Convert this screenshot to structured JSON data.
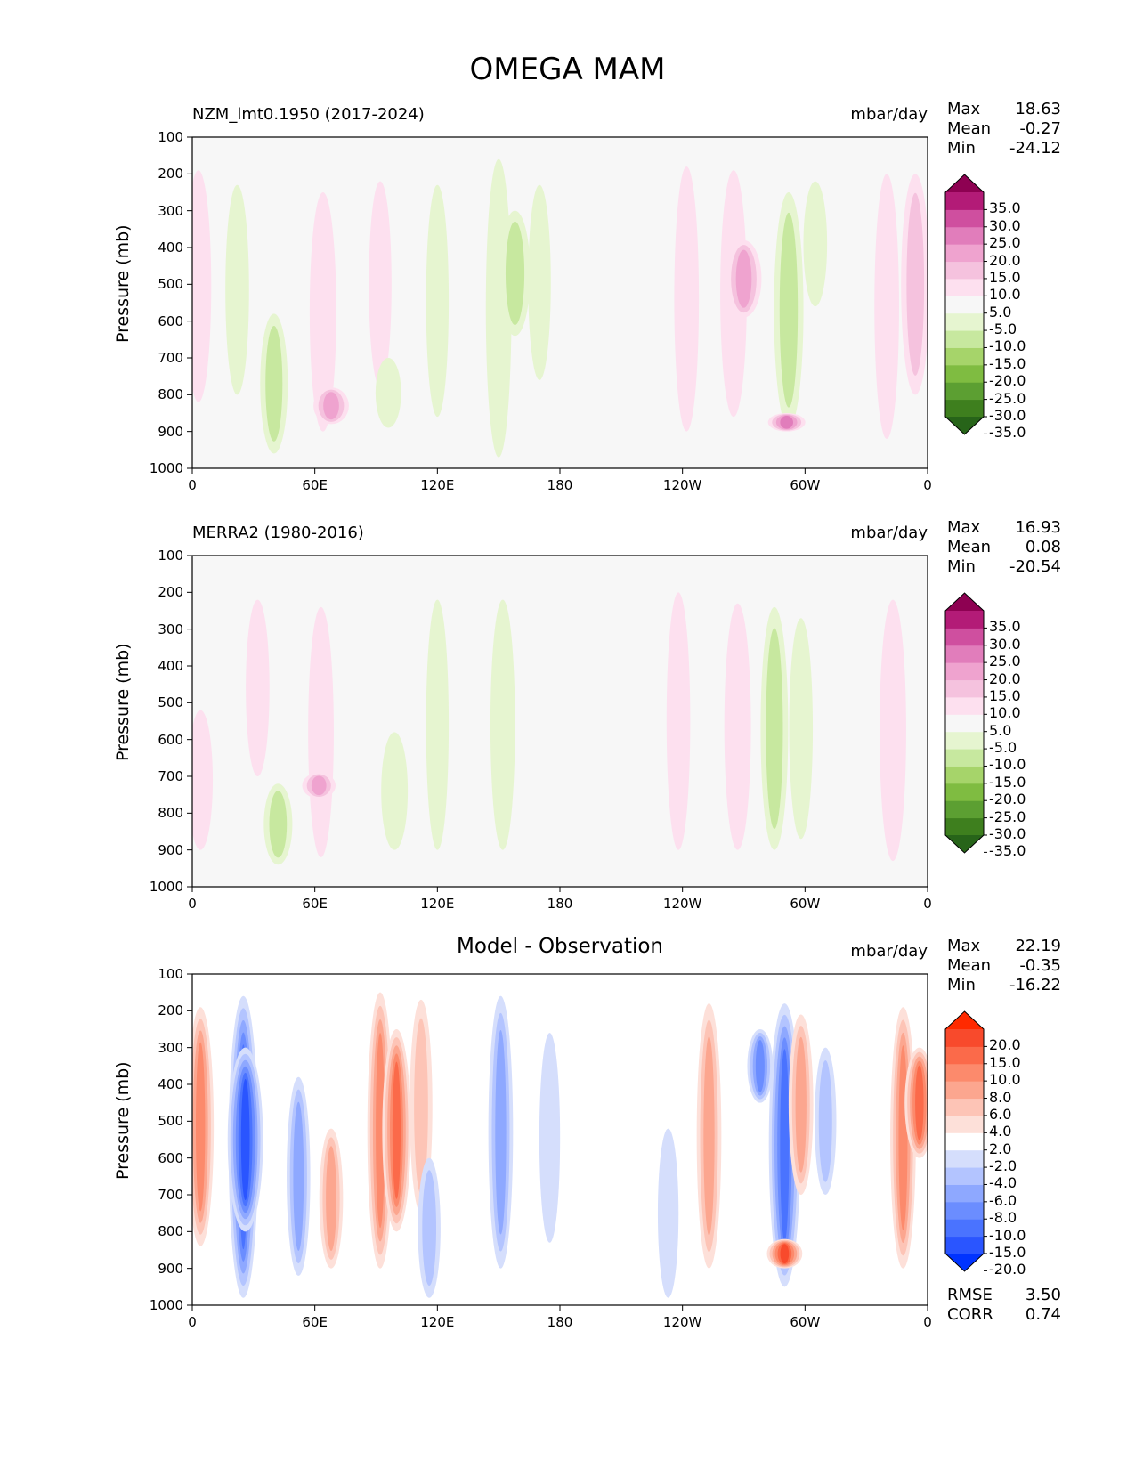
{
  "figure": {
    "title": "OMEGA MAM",
    "colors": {
      "diverging_pink_green": [
        "#276419",
        "#3e7f1e",
        "#5c9f32",
        "#7fbc41",
        "#a6d46a",
        "#c7e89f",
        "#e6f5d0",
        "#f7f7f7",
        "#fde0ef",
        "#f5c2de",
        "#efa3cf",
        "#e17dbb",
        "#cf4f9f",
        "#b31b77",
        "#8e0152"
      ],
      "diverging_blue_red": [
        "#0033ff",
        "#2a55ff",
        "#4a73ff",
        "#6b8dff",
        "#8ea8ff",
        "#b3c4ff",
        "#d5defc",
        "#ffffff",
        "#fde0d9",
        "#fdc4b6",
        "#fca68f",
        "#fc8a6c",
        "#fb6a4a",
        "#f84a2c",
        "#ff2a00"
      ]
    }
  },
  "chart_data": [
    {
      "type": "heatmap",
      "title": "NZM_lmt0.1950 (2017-2024)",
      "units": "mbar/day",
      "ylabel": "Pressure (mb)",
      "yticks": [
        "100",
        "200",
        "300",
        "400",
        "500",
        "600",
        "700",
        "800",
        "900",
        "1000"
      ],
      "xticks": [
        "0",
        "60E",
        "120E",
        "180",
        "120W",
        "60W",
        "0"
      ],
      "ylim": [
        1000,
        100
      ],
      "xlim": [
        0,
        360
      ],
      "stats": {
        "max_label": "Max",
        "max": "18.63",
        "mean_label": "Mean",
        "mean": "-0.27",
        "min_label": "Min",
        "min": "-24.12"
      },
      "colorbar_levels": [
        "35.0",
        "30.0",
        "25.0",
        "20.0",
        "15.0",
        "10.0",
        "5.0",
        "-5.0",
        "-10.0",
        "-15.0",
        "-20.0",
        "-25.0",
        "-30.0",
        "-35.0"
      ],
      "features": [
        {
          "lon": 3,
          "p_top": 190,
          "p_bot": 820,
          "value": 8
        },
        {
          "lon": 22,
          "p_top": 230,
          "p_bot": 800,
          "value": -6
        },
        {
          "lon": 40,
          "p_top": 580,
          "p_bot": 960,
          "value": -10
        },
        {
          "lon": 64,
          "p_top": 250,
          "p_bot": 900,
          "value": 9
        },
        {
          "lon": 68,
          "p_top": 780,
          "p_bot": 880,
          "value": 18
        },
        {
          "lon": 92,
          "p_top": 220,
          "p_bot": 780,
          "value": 5
        },
        {
          "lon": 96,
          "p_top": 700,
          "p_bot": 890,
          "value": -8
        },
        {
          "lon": 120,
          "p_top": 230,
          "p_bot": 860,
          "value": -5
        },
        {
          "lon": 150,
          "p_top": 160,
          "p_bot": 970,
          "value": -8
        },
        {
          "lon": 158,
          "p_top": 300,
          "p_bot": 640,
          "value": -13
        },
        {
          "lon": 170,
          "p_top": 230,
          "p_bot": 760,
          "value": -5
        },
        {
          "lon": 242,
          "p_top": 180,
          "p_bot": 900,
          "value": 7
        },
        {
          "lon": 265,
          "p_top": 190,
          "p_bot": 860,
          "value": 9
        },
        {
          "lon": 270,
          "p_top": 380,
          "p_bot": 590,
          "value": 18
        },
        {
          "lon": 292,
          "p_top": 250,
          "p_bot": 890,
          "value": -12
        },
        {
          "lon": 291,
          "p_top": 850,
          "p_bot": 900,
          "value": 20
        },
        {
          "lon": 305,
          "p_top": 220,
          "p_bot": 560,
          "value": -6
        },
        {
          "lon": 340,
          "p_top": 200,
          "p_bot": 920,
          "value": 7
        },
        {
          "lon": 354,
          "p_top": 200,
          "p_bot": 800,
          "value": 11
        }
      ]
    },
    {
      "type": "heatmap",
      "title": "MERRA2 (1980-2016)",
      "units": "mbar/day",
      "ylabel": "Pressure (mb)",
      "yticks": [
        "100",
        "200",
        "300",
        "400",
        "500",
        "600",
        "700",
        "800",
        "900",
        "1000"
      ],
      "xticks": [
        "0",
        "60E",
        "120E",
        "180",
        "120W",
        "60W",
        "0"
      ],
      "ylim": [
        1000,
        100
      ],
      "xlim": [
        0,
        360
      ],
      "stats": {
        "max_label": "Max",
        "max": "16.93",
        "mean_label": "Mean",
        "mean": "0.08",
        "min_label": "Min",
        "min": "-20.54"
      },
      "colorbar_levels": [
        "35.0",
        "30.0",
        "25.0",
        "20.0",
        "15.0",
        "10.0",
        "5.0",
        "-5.0",
        "-10.0",
        "-15.0",
        "-20.0",
        "-25.0",
        "-30.0",
        "-35.0"
      ],
      "features": [
        {
          "lon": 4,
          "p_top": 520,
          "p_bot": 900,
          "value": 7
        },
        {
          "lon": 32,
          "p_top": 220,
          "p_bot": 700,
          "value": 6
        },
        {
          "lon": 42,
          "p_top": 720,
          "p_bot": 940,
          "value": -11
        },
        {
          "lon": 63,
          "p_top": 240,
          "p_bot": 920,
          "value": 8
        },
        {
          "lon": 62,
          "p_top": 690,
          "p_bot": 760,
          "value": 16
        },
        {
          "lon": 99,
          "p_top": 580,
          "p_bot": 900,
          "value": -9
        },
        {
          "lon": 120,
          "p_top": 220,
          "p_bot": 900,
          "value": -5
        },
        {
          "lon": 152,
          "p_top": 220,
          "p_bot": 900,
          "value": -7
        },
        {
          "lon": 238,
          "p_top": 200,
          "p_bot": 900,
          "value": 6
        },
        {
          "lon": 267,
          "p_top": 230,
          "p_bot": 900,
          "value": 9
        },
        {
          "lon": 285,
          "p_top": 240,
          "p_bot": 900,
          "value": -10
        },
        {
          "lon": 298,
          "p_top": 270,
          "p_bot": 870,
          "value": -6
        },
        {
          "lon": 343,
          "p_top": 220,
          "p_bot": 930,
          "value": 9
        }
      ]
    },
    {
      "type": "heatmap",
      "title": "Model - Observation",
      "units": "mbar/day",
      "ylabel": "Pressure (mb)",
      "yticks": [
        "100",
        "200",
        "300",
        "400",
        "500",
        "600",
        "700",
        "800",
        "900",
        "1000"
      ],
      "xticks": [
        "0",
        "60E",
        "120E",
        "180",
        "120W",
        "60W",
        "0"
      ],
      "ylim": [
        1000,
        100
      ],
      "xlim": [
        0,
        360
      ],
      "stats": {
        "max_label": "Max",
        "max": "22.19",
        "mean_label": "Mean",
        "mean": "-0.35",
        "min_label": "Min",
        "min": "-16.22"
      },
      "colorbar_levels": [
        "20.0",
        "15.0",
        "10.0",
        "8.0",
        "6.0",
        "4.0",
        "2.0",
        "-2.0",
        "-4.0",
        "-6.0",
        "-8.0",
        "-10.0",
        "-15.0",
        "-20.0"
      ],
      "metrics": {
        "rmse_label": "RMSE",
        "rmse": "3.50",
        "corr_label": "CORR",
        "corr": "0.74"
      },
      "features": [
        {
          "lon": 4,
          "p_top": 190,
          "p_bot": 840,
          "value": 9
        },
        {
          "lon": 25,
          "p_top": 160,
          "p_bot": 980,
          "value": -12
        },
        {
          "lon": 26,
          "p_top": 300,
          "p_bot": 800,
          "value": -18
        },
        {
          "lon": 52,
          "p_top": 380,
          "p_bot": 920,
          "value": -6
        },
        {
          "lon": 68,
          "p_top": 520,
          "p_bot": 900,
          "value": 6
        },
        {
          "lon": 92,
          "p_top": 150,
          "p_bot": 900,
          "value": 8
        },
        {
          "lon": 100,
          "p_top": 250,
          "p_bot": 800,
          "value": 11
        },
        {
          "lon": 112,
          "p_top": 170,
          "p_bot": 750,
          "value": 5
        },
        {
          "lon": 116,
          "p_top": 600,
          "p_bot": 980,
          "value": -5
        },
        {
          "lon": 151,
          "p_top": 160,
          "p_bot": 900,
          "value": -7
        },
        {
          "lon": 175,
          "p_top": 260,
          "p_bot": 830,
          "value": -3
        },
        {
          "lon": 233,
          "p_top": 520,
          "p_bot": 980,
          "value": -3
        },
        {
          "lon": 253,
          "p_top": 180,
          "p_bot": 900,
          "value": 7
        },
        {
          "lon": 278,
          "p_top": 250,
          "p_bot": 450,
          "value": -8
        },
        {
          "lon": 290,
          "p_top": 180,
          "p_bot": 950,
          "value": -14
        },
        {
          "lon": 290,
          "p_top": 820,
          "p_bot": 900,
          "value": 18
        },
        {
          "lon": 298,
          "p_top": 210,
          "p_bot": 700,
          "value": 7
        },
        {
          "lon": 310,
          "p_top": 300,
          "p_bot": 700,
          "value": -4
        },
        {
          "lon": 348,
          "p_top": 190,
          "p_bot": 900,
          "value": 8
        },
        {
          "lon": 356,
          "p_top": 300,
          "p_bot": 600,
          "value": 12
        }
      ]
    }
  ]
}
